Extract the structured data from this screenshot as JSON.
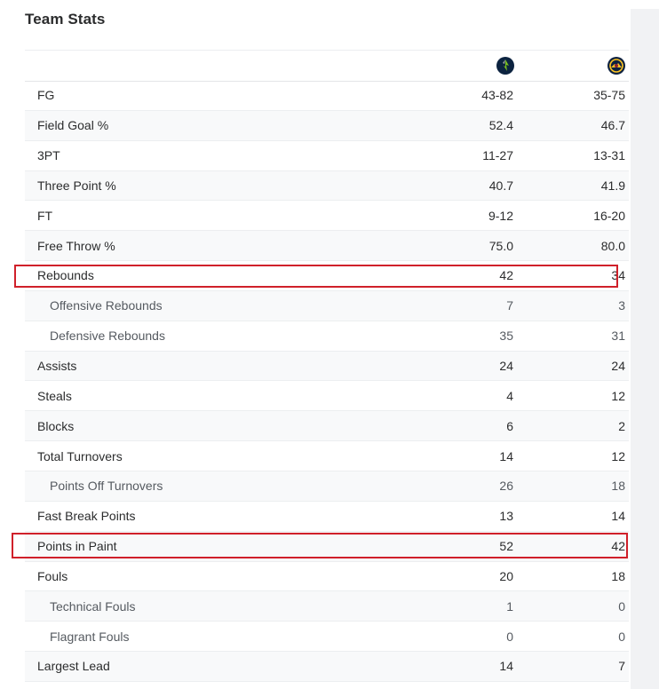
{
  "panel": {
    "title": "Team Stats",
    "teams": [
      {
        "name": "Timberwolves",
        "icon": "timberwolves-logo-icon",
        "color": "#0c2340"
      },
      {
        "name": "Nuggets",
        "icon": "nuggets-logo-icon",
        "color": "#0e2240"
      }
    ]
  },
  "stats": [
    {
      "label": "FG",
      "a": "43-82",
      "b": "35-75",
      "style": "semi"
    },
    {
      "label": "Field Goal %",
      "a": "52.4",
      "b": "46.7",
      "style": "semi"
    },
    {
      "label": "3PT",
      "a": "11-27",
      "b": "13-31",
      "style": "semi"
    },
    {
      "label": "Three Point %",
      "a": "40.7",
      "b": "41.9",
      "style": "semi"
    },
    {
      "label": "FT",
      "a": "9-12",
      "b": "16-20",
      "style": "semi"
    },
    {
      "label": "Free Throw %",
      "a": "75.0",
      "b": "80.0",
      "style": "semi"
    },
    {
      "label": "Rebounds",
      "a": "42",
      "b": "34",
      "style": "semi",
      "highlight": true
    },
    {
      "label": "Offensive Rebounds",
      "a": "7",
      "b": "3",
      "style": "sub"
    },
    {
      "label": "Defensive Rebounds",
      "a": "35",
      "b": "31",
      "style": "sub"
    },
    {
      "label": "Assists",
      "a": "24",
      "b": "24",
      "style": "semi"
    },
    {
      "label": "Steals",
      "a": "4",
      "b": "12",
      "style": "semi"
    },
    {
      "label": "Blocks",
      "a": "6",
      "b": "2",
      "style": "semi"
    },
    {
      "label": "Total Turnovers",
      "a": "14",
      "b": "12",
      "style": "semi"
    },
    {
      "label": "Points Off Turnovers",
      "a": "26",
      "b": "18",
      "style": "sub"
    },
    {
      "label": "Fast Break Points",
      "a": "13",
      "b": "14",
      "style": "semi"
    },
    {
      "label": "Points in Paint",
      "a": "52",
      "b": "42",
      "style": "semi",
      "highlight": true
    },
    {
      "label": "Fouls",
      "a": "20",
      "b": "18",
      "style": "semi"
    },
    {
      "label": "Technical Fouls",
      "a": "1",
      "b": "0",
      "style": "sub"
    },
    {
      "label": "Flagrant Fouls",
      "a": "0",
      "b": "0",
      "style": "sub"
    },
    {
      "label": "Largest Lead",
      "a": "14",
      "b": "7",
      "style": "semi"
    }
  ],
  "highlight_color": "#d0202a"
}
